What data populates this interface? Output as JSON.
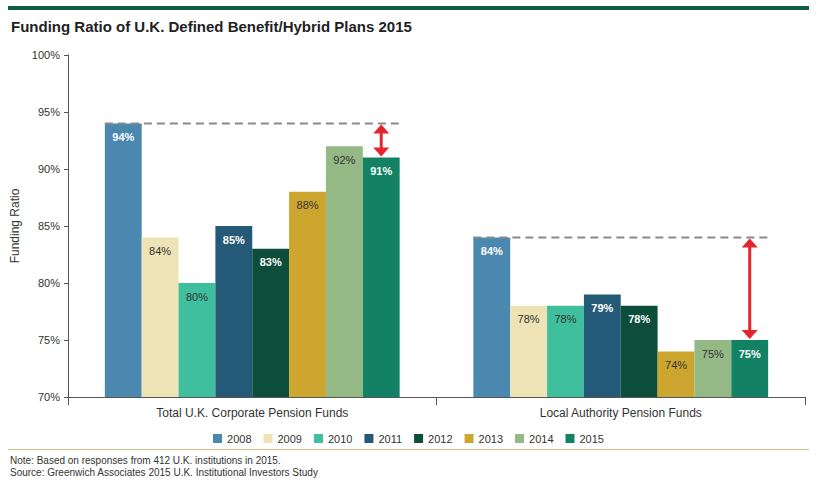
{
  "chart_data": {
    "type": "bar",
    "title": "Funding Ratio of U.K. Defined Benefit/Hybrid Plans 2015",
    "y_label": "Funding Ratio",
    "categories": [
      "Total U.K. Corporate Pension Funds",
      "Local Authority Pension Funds"
    ],
    "series": [
      {
        "name": "2008",
        "color": "#4a88b0",
        "values": [
          94,
          84
        ],
        "value_labels": [
          "94%",
          "84%"
        ]
      },
      {
        "name": "2009",
        "color": "#ede3b4",
        "values": [
          84,
          78
        ],
        "value_labels": [
          "84%",
          "78%"
        ]
      },
      {
        "name": "2010",
        "color": "#3fbf9d",
        "values": [
          80,
          78
        ],
        "value_labels": [
          "80%",
          "78%"
        ]
      },
      {
        "name": "2011",
        "color": "#245a78",
        "values": [
          85,
          79
        ],
        "value_labels": [
          "85%",
          "79%"
        ]
      },
      {
        "name": "2012",
        "color": "#0d4e3a",
        "values": [
          83,
          78
        ],
        "value_labels": [
          "83%",
          "78%"
        ]
      },
      {
        "name": "2013",
        "color": "#cca62e",
        "values": [
          88,
          74
        ],
        "value_labels": [
          "88%",
          "74%"
        ]
      },
      {
        "name": "2014",
        "color": "#94b985",
        "values": [
          92,
          75
        ],
        "value_labels": [
          "92%",
          "75%"
        ]
      },
      {
        "name": "2015",
        "color": "#138164",
        "values": [
          91,
          75
        ],
        "value_labels": [
          "91%",
          "75%"
        ]
      }
    ],
    "ylim": [
      70,
      100
    ],
    "yticks": [
      {
        "value": 70,
        "label": "70%"
      },
      {
        "value": 75,
        "label": "75%"
      },
      {
        "value": 80,
        "label": "80%"
      },
      {
        "value": 85,
        "label": "85%"
      },
      {
        "value": 90,
        "label": "90%"
      },
      {
        "value": 95,
        "label": "95%"
      },
      {
        "value": 100,
        "label": "100%"
      }
    ],
    "grid": false,
    "legend": "bottom",
    "data_labels": true,
    "notes": [
      "Note: Based on responses from 412 U.K. institutions in 2015.",
      "Source: Greenwich Associates 2015 U.K. Institutional Investors Study"
    ]
  }
}
